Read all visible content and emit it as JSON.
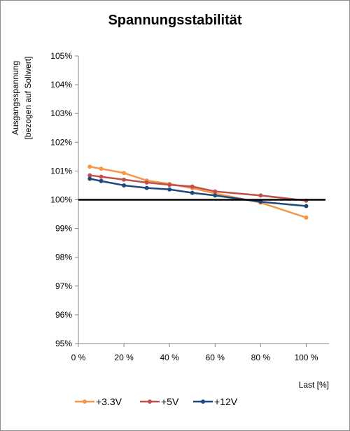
{
  "chart_data": {
    "type": "line",
    "title": "Spannungsstabilität",
    "ylabel": [
      "Ausgangsspannung",
      "[bezogen auf Sollwert]"
    ],
    "xlabel": "Last [%]",
    "x": [
      5,
      10,
      20,
      30,
      40,
      50,
      60,
      80,
      100
    ],
    "xlim": [
      0,
      110
    ],
    "ylim": [
      95,
      105
    ],
    "xticks": [
      0,
      20,
      40,
      60,
      80,
      100
    ],
    "xtick_labels": [
      "0 %",
      "20 %",
      "40 %",
      "60 %",
      "80 %",
      "100 %"
    ],
    "yticks": [
      95,
      96,
      97,
      98,
      99,
      100,
      101,
      102,
      103,
      104,
      105
    ],
    "ytick_labels": [
      "95%",
      "96%",
      "97%",
      "98%",
      "99%",
      "100%",
      "101%",
      "102%",
      "103%",
      "104%",
      "105%"
    ],
    "reference_line": 100,
    "legend_position": "bottom",
    "grid": false,
    "series": [
      {
        "name": "+3.3V",
        "color": "#f79646",
        "values": [
          101.15,
          101.08,
          100.93,
          100.67,
          100.55,
          100.4,
          100.22,
          99.9,
          99.38
        ]
      },
      {
        "name": "+5V",
        "color": "#c0504d",
        "values": [
          100.85,
          100.8,
          100.7,
          100.6,
          100.52,
          100.46,
          100.29,
          100.15,
          99.97
        ]
      },
      {
        "name": "+12V",
        "color": "#1f497d",
        "values": [
          100.73,
          100.65,
          100.5,
          100.41,
          100.36,
          100.24,
          100.15,
          99.93,
          99.78
        ]
      }
    ]
  }
}
